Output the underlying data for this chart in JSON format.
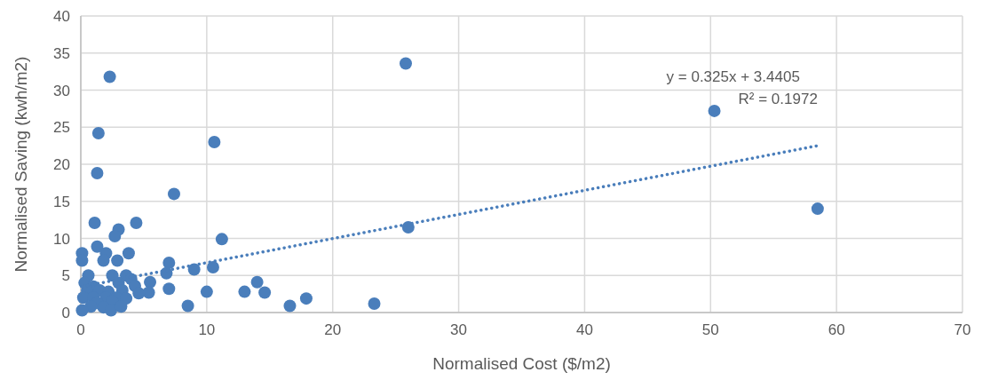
{
  "chart_data": {
    "type": "scatter",
    "xlabel": "Normalised Cost ($/m2)",
    "ylabel": "Normalised Saving (kwh/m2)",
    "xlim": [
      0,
      70
    ],
    "xticks": [
      0,
      10,
      20,
      30,
      40,
      50,
      60,
      70
    ],
    "ylim": [
      0,
      40
    ],
    "yticks": [
      0,
      5,
      10,
      15,
      20,
      25,
      30,
      35,
      40
    ],
    "grid": true,
    "marker": "circle",
    "annotations": [
      "y = 0.325x + 3.4405",
      "R² = 0.1972"
    ],
    "series": [
      {
        "color": "#4a7ebb",
        "x": [
          2.3,
          25.8,
          50.3,
          58.5,
          1.4,
          10.6,
          1.3,
          7.4,
          1.1,
          4.4,
          3.0,
          26,
          2.7,
          11.2,
          1.3,
          0.1,
          2.0,
          3.8,
          0.1,
          1.8,
          2.9,
          7.0,
          10.5,
          9.0,
          6.8,
          0.6,
          2.5,
          3.6,
          4.0,
          5.5,
          14.0,
          0.3,
          1.0,
          3.0,
          4.3,
          7.0,
          0.5,
          1.5,
          2.2,
          3.3,
          5.4,
          4.6,
          10.0,
          13.0,
          14.6,
          0.2,
          1.0,
          2.0,
          2.8,
          3.6,
          17.9,
          1.3,
          2.5,
          23.3,
          8.5,
          16.6,
          0.8,
          1.8,
          2.4,
          0.1,
          3.2
        ],
        "values": [
          31.8,
          33.6,
          27.2,
          14.0,
          24.2,
          23.0,
          18.8,
          16.0,
          12.1,
          12.1,
          11.2,
          11.5,
          10.3,
          9.9,
          8.9,
          8.0,
          8.0,
          8.0,
          7.0,
          7.0,
          7.0,
          6.7,
          6.1,
          5.8,
          5.3,
          5.0,
          5.0,
          5.0,
          4.5,
          4.1,
          4.1,
          4.0,
          3.5,
          4.0,
          3.6,
          3.2,
          3.0,
          3.0,
          2.8,
          3.0,
          2.7,
          2.6,
          2.8,
          2.8,
          2.7,
          2.0,
          2.0,
          2.0,
          2.0,
          1.9,
          1.9,
          1.3,
          1.5,
          1.2,
          0.9,
          0.9,
          0.8,
          0.7,
          0.3,
          0.3,
          0.8
        ]
      },
      {
        "type": "line",
        "color": "#4a7ebb",
        "line_style": "dotted",
        "marker": "none",
        "x": [
          0.1,
          58.5
        ],
        "values": [
          3.5,
          22.5
        ]
      }
    ]
  }
}
